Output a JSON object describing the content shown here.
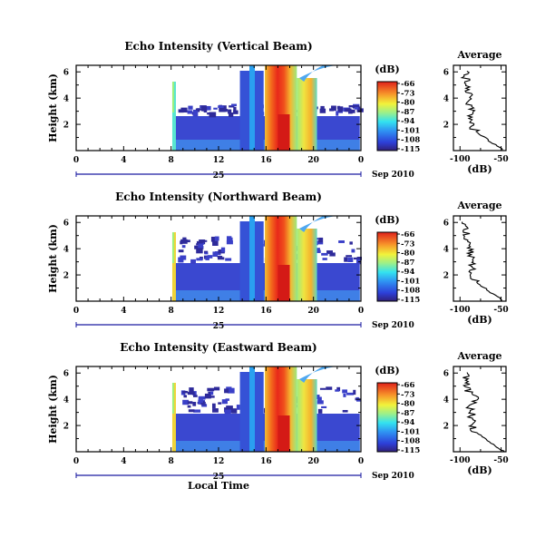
{
  "chart_data": [
    {
      "type": "heatmap",
      "title": "Echo Intensity (Vertical Beam)",
      "ylabel": "Height (km)",
      "xlabel": "",
      "x_ticks": [
        "0",
        "4",
        "8",
        "12",
        "16",
        "20",
        "0"
      ],
      "y_ticks": [
        "6",
        "4",
        "2"
      ],
      "date_day": "25",
      "date_suffix": "Sep 2010",
      "colorbar": {
        "unit": "(dB)",
        "ticks": [
          "-66",
          "-73",
          "-80",
          "-87",
          "-94",
          "-101",
          "-108",
          "-115"
        ]
      },
      "average": {
        "title": "Average",
        "xlabel": "(dB)",
        "x_ticks": [
          "-100",
          "-50"
        ],
        "y_ticks": [
          "6",
          "4",
          "2"
        ]
      }
    },
    {
      "type": "heatmap",
      "title": "Echo Intensity (Northward Beam)",
      "ylabel": "Height (km)",
      "xlabel": "",
      "x_ticks": [
        "0",
        "4",
        "8",
        "12",
        "16",
        "20",
        "0"
      ],
      "y_ticks": [
        "6",
        "4",
        "2"
      ],
      "date_day": "25",
      "date_suffix": "Sep 2010",
      "colorbar": {
        "unit": "(dB)",
        "ticks": [
          "-66",
          "-73",
          "-80",
          "-87",
          "-94",
          "-101",
          "-108",
          "-115"
        ]
      },
      "average": {
        "title": "Average",
        "xlabel": "(dB)",
        "x_ticks": [
          "-100",
          "-50"
        ],
        "y_ticks": [
          "6",
          "4",
          "2"
        ]
      }
    },
    {
      "type": "heatmap",
      "title": "Echo Intensity (Eastward Beam)",
      "ylabel": "Height (km)",
      "xlabel": "Local Time",
      "x_ticks": [
        "0",
        "4",
        "8",
        "12",
        "16",
        "20",
        "0"
      ],
      "y_ticks": [
        "6",
        "4",
        "2"
      ],
      "date_day": "25",
      "date_suffix": "Sep 2010",
      "colorbar": {
        "unit": "(dB)",
        "ticks": [
          "-66",
          "-73",
          "-80",
          "-87",
          "-94",
          "-101",
          "-108",
          "-115"
        ]
      },
      "average": {
        "title": "Average",
        "xlabel": "(dB)",
        "x_ticks": [
          "-100",
          "-50"
        ],
        "y_ticks": [
          "6",
          "4",
          "2"
        ]
      }
    }
  ]
}
